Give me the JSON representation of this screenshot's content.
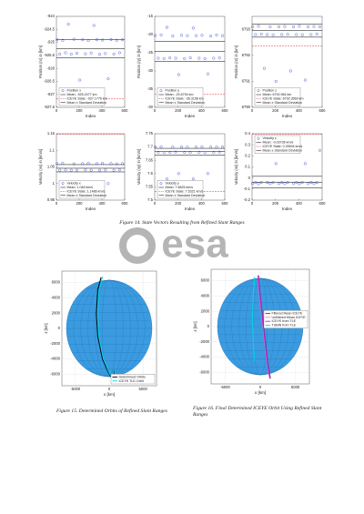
{
  "chart_data": [
    {
      "type": "scatter",
      "ylabel": "Position (rx) in [km]",
      "xlabel": "Index",
      "xlim": [
        0,
        600
      ],
      "xticks": [
        0,
        200,
        400,
        600
      ],
      "ylim": [
        -927.5,
        -924
      ],
      "yticks": [
        -927.5,
        -927,
        -926.5,
        -926,
        -925.5,
        -925,
        -924.5,
        -924
      ],
      "legend": "lower left",
      "x": [
        5,
        30,
        55,
        80,
        105,
        130,
        155,
        180,
        205,
        230,
        255,
        280,
        305,
        330,
        355,
        380,
        405,
        430,
        455,
        480,
        505,
        530,
        555,
        580
      ],
      "series": [
        {
          "name": "Position x",
          "color": "#3b4fd6",
          "values": [
            -924.9,
            -925.45,
            -924.92,
            -925.4,
            -924.3,
            -925.45,
            -924.88,
            -925.42,
            -926.45,
            -924.9,
            -925.44,
            -924.93,
            -925.41,
            -924.35,
            -924.9,
            -925.46,
            -924.91,
            -925.43,
            -926.4,
            -924.89,
            -925.45,
            -924.92,
            -925.4,
            -924.9
          ]
        }
      ],
      "lines": [
        {
          "name": "Mean: -925.2477 km",
          "value": -925.2477,
          "color": "#000000"
        },
        {
          "name": "ICEYE State: -927.1776 km",
          "value": -927.1776,
          "color": "#e03040",
          "dashed": true
        },
        {
          "name": "Mean ± Standard Deviation",
          "values": [
            -925.6,
            -924.9
          ],
          "color": "#000000"
        }
      ]
    },
    {
      "type": "scatter",
      "ylabel": "Position (ry) in [km]",
      "xlabel": "Index",
      "xlim": [
        0,
        600
      ],
      "xticks": [
        0,
        200,
        400,
        600
      ],
      "ylim": [
        -40,
        -15
      ],
      "yticks": [
        -40,
        -35,
        -30,
        -25,
        -20,
        -15
      ],
      "legend": "lower left",
      "x": [
        5,
        30,
        55,
        80,
        105,
        130,
        155,
        180,
        205,
        230,
        255,
        280,
        305,
        330,
        355,
        380,
        405,
        430,
        455,
        480,
        505,
        530,
        555,
        580
      ],
      "series": [
        {
          "name": "Position y",
          "color": "#3b4fd6",
          "values": [
            -20.3,
            -26.5,
            -20.1,
            -26.6,
            -18,
            -26.4,
            -20.4,
            -26.5,
            -31,
            -20.2,
            -26.6,
            -20.3,
            -26.4,
            -18.2,
            -20.3,
            -26.5,
            -20.2,
            -26.6,
            -30.8,
            -20.4,
            -26.5,
            -20.1,
            -26.4,
            -20.3
          ]
        }
      ],
      "lines": [
        {
          "name": "Mean: -24.6794 km",
          "value": -24.6794,
          "color": "#000000"
        },
        {
          "name": "ICEYE State: -36.3158 km",
          "value": -36.3158,
          "color": "#e03040",
          "dashed": true
        },
        {
          "name": "Mean ± Standard Deviation",
          "values": [
            -27.4,
            -21.9
          ],
          "color": "#000000"
        }
      ]
    },
    {
      "type": "scatter",
      "ylabel": "Position (rz) in [km]",
      "xlabel": "Index",
      "xlim": [
        0,
        600
      ],
      "xticks": [
        0,
        200,
        400,
        600
      ],
      "ylim": [
        6790,
        6793.5
      ],
      "yticks": [
        6790,
        6791,
        6792,
        6793
      ],
      "legend": "lower left",
      "x": [
        5,
        30,
        55,
        80,
        105,
        130,
        155,
        180,
        205,
        230,
        255,
        280,
        305,
        330,
        355,
        380,
        405,
        430,
        455,
        480,
        505,
        530,
        555,
        580
      ],
      "series": [
        {
          "name": "Position z",
          "color": "#3b4fd6",
          "values": [
            6793.1,
            6792.8,
            6793.12,
            6792.82,
            6791.5,
            6792.8,
            6793.1,
            6792.79,
            6791,
            6793.1,
            6792.8,
            6793.11,
            6792.81,
            6791.4,
            6793.1,
            6792.8,
            6793.12,
            6792.79,
            6791.05,
            6793.1,
            6792.8,
            6793.11,
            6792.82,
            6793.1
          ]
        }
      ],
      "lines": [
        {
          "name": "Mean: 6792.964 km",
          "value": 6792.964,
          "color": "#000000"
        },
        {
          "name": "ICEYE State: 6792.3569 km",
          "value": 6792.3569,
          "color": "#e03040",
          "dashed": true
        },
        {
          "name": "Mean ± Standard Deviation",
          "values": [
            6792.7,
            6793.2
          ],
          "color": "#000000"
        }
      ]
    },
    {
      "type": "scatter",
      "ylabel": "Velocity (vx) in [km/s]",
      "xlabel": "Index",
      "xlim": [
        0,
        600
      ],
      "xticks": [
        0,
        200,
        400,
        600
      ],
      "ylim": [
        0.95,
        1.15
      ],
      "yticks": [
        0.95,
        1,
        1.05,
        1.1,
        1.15
      ],
      "legend": "lower left",
      "x": [
        5,
        30,
        55,
        80,
        105,
        130,
        155,
        180,
        205,
        230,
        255,
        280,
        305,
        330,
        355,
        380,
        405,
        430,
        455,
        480,
        505,
        530,
        555,
        580
      ],
      "series": [
        {
          "name": "Velocity x",
          "color": "#3b4fd6",
          "values": [
            1.06,
            1.04,
            1.061,
            1.041,
            0.98,
            1.04,
            1.059,
            1.04,
            1,
            1.06,
            1.041,
            1.061,
            1.04,
            0.98,
            1.06,
            1.04,
            1.061,
            1.041,
            1,
            1.06,
            1.04,
            1.059,
            1.041,
            1.06
          ]
        }
      ],
      "lines": [
        {
          "name": "Mean: 1.046 km/s",
          "value": 1.046,
          "color": "#000000"
        },
        {
          "name": "ICEYE State: 1.1486 km/s",
          "value": 1.1486,
          "color": "#e03040",
          "dashed": true
        },
        {
          "name": "Mean ± Standard Deviation",
          "values": [
            1.035,
            1.057
          ],
          "color": "#000000"
        }
      ]
    },
    {
      "type": "scatter",
      "ylabel": "Velocity (vy) in [km/s]",
      "xlabel": "Index",
      "xlim": [
        0,
        600
      ],
      "xticks": [
        0,
        200,
        400,
        600
      ],
      "ylim": [
        7.5,
        7.75
      ],
      "yticks": [
        7.5,
        7.55,
        7.6,
        7.65,
        7.7,
        7.75
      ],
      "legend": "lower left",
      "x": [
        5,
        30,
        55,
        80,
        105,
        130,
        155,
        180,
        205,
        230,
        255,
        280,
        305,
        330,
        355,
        380,
        405,
        430,
        455,
        480,
        505,
        530,
        555,
        580
      ],
      "series": [
        {
          "name": "Velocity y",
          "color": "#3b4fd6",
          "values": [
            7.7,
            7.68,
            7.701,
            7.679,
            7.58,
            7.68,
            7.7,
            7.681,
            7.6,
            7.7,
            7.68,
            7.699,
            7.68,
            7.58,
            7.7,
            7.68,
            7.701,
            7.679,
            7.6,
            7.7,
            7.68,
            7.7,
            7.681,
            7.7
          ]
        }
      ],
      "lines": [
        {
          "name": "Mean: 7.6825 km/s",
          "value": 7.6825,
          "color": "#000000"
        },
        {
          "name": "ICEYE State: 7.5321 km/s",
          "value": 7.5321,
          "color": "#e03040",
          "dashed": true
        },
        {
          "name": "Mean ± Standard Deviation",
          "values": [
            7.67,
            7.695
          ],
          "color": "#000000"
        }
      ]
    },
    {
      "type": "scatter",
      "ylabel": "Velocity (vz) in [km/s]",
      "xlabel": "Index",
      "xlim": [
        0,
        600
      ],
      "xticks": [
        0,
        200,
        400,
        600
      ],
      "ylim": [
        -0.2,
        0.4
      ],
      "yticks": [
        -0.2,
        -0.1,
        0,
        0.1,
        0.2,
        0.3,
        0.4
      ],
      "legend": "upper left",
      "x": [
        5,
        30,
        55,
        80,
        105,
        130,
        155,
        180,
        205,
        230,
        255,
        280,
        305,
        330,
        355,
        380,
        405,
        430,
        455,
        480,
        505,
        530,
        555,
        580
      ],
      "series": [
        {
          "name": "Velocity z",
          "color": "#3b4fd6",
          "values": [
            -0.05,
            -0.04,
            -0.051,
            -0.04,
            0.25,
            -0.04,
            -0.05,
            -0.041,
            0.13,
            -0.05,
            -0.04,
            -0.05,
            -0.04,
            0.3,
            -0.05,
            -0.04,
            -0.051,
            -0.04,
            0.13,
            -0.05,
            -0.04,
            -0.05,
            -0.041,
            0.25
          ]
        }
      ],
      "lines": [
        {
          "name": "Mean: -0.03736 km/s",
          "value": -0.03736,
          "color": "#000000"
        },
        {
          "name": "ICEYE State: 0.39594 km/s",
          "value": 0.39594,
          "color": "#e03040",
          "dashed": true
        },
        {
          "name": "Mean ± Standard Deviation",
          "values": [
            -0.09,
            0.015
          ],
          "color": "#000000"
        }
      ]
    },
    {
      "type": "line",
      "xlabel": "x [km]",
      "ylabel": "z [km]",
      "xlim": [
        -7000,
        7000
      ],
      "xticks": [
        -5000,
        0,
        5000
      ],
      "ylim": [
        -7500,
        7500
      ],
      "yticks": [
        -6000,
        -4000,
        -2000,
        0,
        2000,
        4000,
        6000
      ],
      "grid": true,
      "legend": "lower right",
      "series": [
        {
          "name": "Determined Orbits",
          "color": "#000000",
          "x": [
            -1200,
            -1700,
            -1900,
            -1700,
            -1000,
            0,
            800,
            1000,
            700
          ],
          "values": [
            6700,
            5000,
            2000,
            -1000,
            -4000,
            -6000,
            -6900,
            -6500,
            -5500
          ]
        },
        {
          "name": "ICEYE TLE-Orbit",
          "color": "#00d8e8",
          "x": [
            -1000,
            -1500,
            -1750,
            -1550,
            -850,
            100,
            850,
            1050,
            750
          ],
          "values": [
            6750,
            5000,
            2000,
            -1000,
            -4000,
            -6000,
            -6850,
            -6450,
            -5450
          ]
        }
      ]
    },
    {
      "type": "line",
      "xlabel": "x [km]",
      "ylabel": "z [km]",
      "xlim": [
        -7000,
        7000
      ],
      "xticks": [
        -5000,
        0,
        5000
      ],
      "ylim": [
        -7500,
        7500
      ],
      "yticks": [
        -6000,
        -4000,
        -2000,
        0,
        2000,
        4000,
        6000
      ],
      "grid": true,
      "legend": "center right",
      "series": [
        {
          "name": "Filtered Mean ICEYE",
          "color": "#6a2a7a",
          "x": [
            -250,
            -50,
            250,
            550,
            850,
            1150,
            1450
          ],
          "values": [
            6700,
            4500,
            2000,
            -500,
            -3000,
            -5300,
            -6800
          ]
        },
        {
          "name": "Unfiltered Mean ICEYE",
          "color": "#ff7ad0",
          "x": [
            -350,
            -150,
            150,
            450,
            750,
            1050,
            1350
          ],
          "values": [
            6700,
            4500,
            2000,
            -500,
            -3000,
            -5300,
            -6800
          ]
        },
        {
          "name": "ICEYE from TLE",
          "color": "#c020c0",
          "x": [
            -300,
            -100,
            200,
            500,
            800,
            1100,
            1400
          ],
          "values": [
            6700,
            4500,
            2000,
            -500,
            -3000,
            -5300,
            -6800
          ]
        },
        {
          "name": "TUBIN from TLE",
          "color": "#00d8e8",
          "x": [
            -800,
            -1000,
            -1100,
            -1000,
            -800
          ],
          "values": [
            6500,
            4000,
            1000,
            -2000,
            -4500
          ]
        }
      ]
    }
  ],
  "captions": [
    "Figure 14. State Vectors Resulting from Refined Slant Ranges",
    "Figure 15. Determined Orbits of Refined Slant Ranges",
    "Figure 16. Final Determined ICEYE Orbit Using Refined Slant Ranges"
  ],
  "watermark": "esa"
}
